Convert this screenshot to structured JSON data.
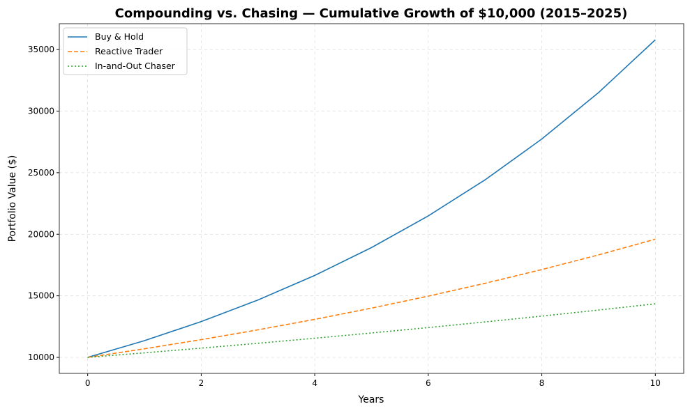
{
  "chart_data": {
    "type": "line",
    "title": "Compounding vs. Chasing — Cumulative Growth of $10,000 (2015–2025)",
    "xlabel": "Years",
    "ylabel": "Portfolio Value ($)",
    "x": [
      0,
      1,
      2,
      3,
      4,
      5,
      6,
      7,
      8,
      9,
      10
    ],
    "xlim": [
      -0.5,
      10.5
    ],
    "ylim": [
      8700,
      37100
    ],
    "xticks": [
      0,
      2,
      4,
      6,
      8,
      10
    ],
    "yticks": [
      10000,
      15000,
      20000,
      25000,
      30000,
      35000
    ],
    "grid": true,
    "legend_position": "top-left",
    "series": [
      {
        "name": "Buy & Hold",
        "color": "#1f77b4",
        "style": "solid",
        "values": [
          10000,
          11360,
          12905,
          14660,
          16654,
          18919,
          21492,
          24415,
          27735,
          31507,
          35792
        ]
      },
      {
        "name": "Reactive Trader",
        "color": "#ff7f0e",
        "style": "dashed",
        "values": [
          10000,
          10696,
          11440,
          12237,
          13088,
          13999,
          14974,
          16016,
          17131,
          18323,
          19598
        ]
      },
      {
        "name": "In-and-Out Chaser",
        "color": "#2ca02c",
        "style": "dotted",
        "values": [
          10000,
          10368,
          10750,
          11145,
          11555,
          11980,
          12421,
          12878,
          13352,
          13843,
          14352
        ]
      }
    ]
  }
}
